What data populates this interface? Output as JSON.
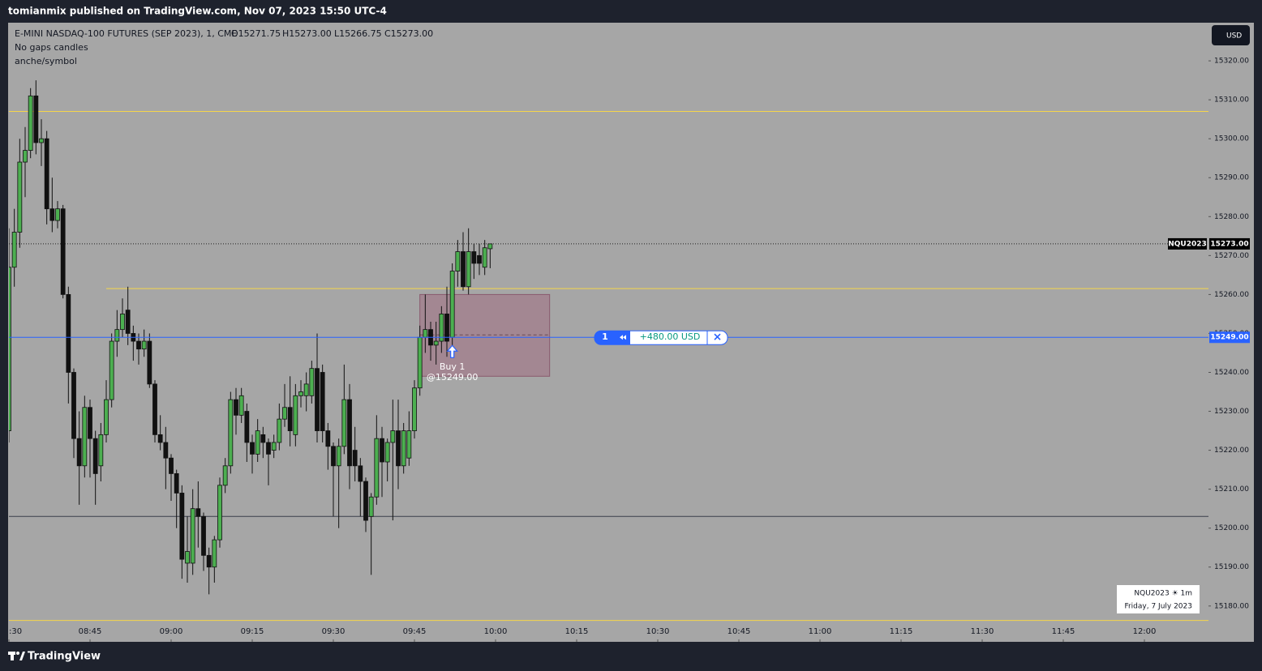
{
  "header": {
    "published": "tomianmix published on TradingView.com, Nov 07, 2023 15:50 UTC-4"
  },
  "legend": {
    "symbol": "E-MINI NASDAQ-100 FUTURES (SEP 2023), 1, CME",
    "open": "O15271.75",
    "high": "H15273.00",
    "low": "L15266.75",
    "close": "C15273.00",
    "indicator1": "No gaps candles",
    "indicator2": "anche/symbol"
  },
  "currency_button": "USD",
  "chart_data": {
    "type": "candlestick",
    "grid": false,
    "background": "#a6a6a6",
    "up_color": "#4caf50",
    "down_color": "#111111",
    "x": [
      510,
      511,
      512,
      513,
      514,
      515,
      516,
      517,
      518,
      519,
      520,
      521,
      522,
      523,
      524,
      525,
      526,
      527,
      528,
      529,
      530,
      531,
      532,
      533,
      534,
      535,
      536,
      537,
      538,
      539,
      540,
      541,
      542,
      543,
      544,
      545,
      546,
      547,
      548,
      549,
      550,
      551,
      552,
      553,
      554,
      555,
      556,
      557,
      558,
      559,
      560,
      561,
      562,
      563,
      564,
      565,
      566,
      567,
      568,
      569,
      570,
      571,
      572,
      573,
      574,
      575,
      576,
      577,
      578,
      579,
      580,
      581,
      582,
      583,
      584,
      585,
      586,
      587,
      588,
      589,
      590,
      591,
      592,
      593,
      594,
      595,
      596,
      597,
      598,
      599
    ],
    "open": [
      15225,
      15267,
      15276,
      15294,
      15297,
      15311,
      15299,
      15300,
      15282,
      15279,
      15282,
      15260,
      15240,
      15223,
      15216,
      15231,
      15223,
      15216,
      15224,
      15233,
      15248,
      15251,
      15256,
      15250,
      15248,
      15246,
      15248,
      15237,
      15224,
      15222,
      15218,
      15214,
      15209,
      15191,
      15191,
      15205,
      15203,
      15193,
      15190,
      15197,
      15211,
      15216,
      15233,
      15229,
      15230,
      15222,
      15219,
      15224,
      15222,
      15220,
      15222,
      15228,
      15231,
      15224,
      15234,
      15234,
      15234,
      15241,
      15240,
      15225,
      15221,
      15216,
      15221,
      15233,
      15220,
      15216,
      15212,
      15203,
      15208,
      15223,
      15217,
      15222,
      15225,
      15216,
      15218,
      15225,
      15236,
      15249,
      15251,
      15247,
      15248,
      15255,
      15249,
      15266,
      15271,
      15262,
      15271,
      15270,
      15267,
      15271.75
    ],
    "high": [
      15277,
      15282,
      15300,
      15303,
      15313,
      15315,
      15305,
      15302,
      15290,
      15284,
      15283,
      15262,
      15241,
      15230,
      15234,
      15233,
      15225,
      15227,
      15238,
      15250,
      15256,
      15259,
      15262,
      15252,
      15250,
      15251,
      15250,
      15238,
      15229,
      15226,
      15219,
      15215,
      15211,
      15203,
      15210,
      15212,
      15204,
      15195,
      15198,
      15213,
      15218,
      15235,
      15236,
      15236,
      15232,
      15224,
      15228,
      15226,
      15223,
      15224,
      15232,
      15237,
      15239,
      15237,
      15238,
      15240,
      15243,
      15250,
      15242,
      15227,
      15222,
      15223,
      15242,
      15237,
      15226,
      15218,
      15213,
      15209,
      15229,
      15226,
      15223,
      15233,
      15233,
      15227,
      15230,
      15238,
      15252,
      15260,
      15253,
      15253,
      15257,
      15262,
      15268,
      15274,
      15276,
      15277,
      15273,
      15273,
      15274,
      15273
    ],
    "low": [
      15222,
      15262,
      15272,
      15285,
      15295,
      15296,
      15293,
      15278,
      15276,
      15277,
      15259,
      15232,
      15218,
      15206,
      15213,
      15213,
      15206,
      15212,
      15222,
      15231,
      15244,
      15249,
      15247,
      15243,
      15242,
      15244,
      15236,
      15222,
      15220,
      15210,
      15207,
      15200,
      15187,
      15186,
      15188,
      15195,
      15189,
      15183,
      15186,
      15195,
      15209,
      15214,
      15224,
      15227,
      15217,
      15214,
      15217,
      15218,
      15211,
      15218,
      15220,
      15226,
      15221,
      15221,
      15231,
      15230,
      15232,
      15222,
      15222,
      15215,
      15203,
      15200,
      15219,
      15210,
      15212,
      15203,
      15199,
      15188,
      15206,
      15208,
      15212,
      15202,
      15210,
      15214,
      15216,
      15223,
      15234,
      15245,
      15243,
      15242,
      15245,
      15244,
      15246,
      15262,
      15261,
      15260,
      15264,
      15265,
      15265,
      15266.75
    ],
    "close": [
      15267,
      15276,
      15294,
      15297,
      15311,
      15299,
      15300,
      15282,
      15279,
      15282,
      15260,
      15240,
      15223,
      15216,
      15231,
      15223,
      15214,
      15224,
      15233,
      15248,
      15251,
      15255,
      15250,
      15248,
      15246,
      15248,
      15237,
      15224,
      15222,
      15218,
      15214,
      15209,
      15192,
      15194,
      15205,
      15203,
      15193,
      15190,
      15197,
      15211,
      15216,
      15233,
      15229,
      15234,
      15222,
      15219,
      15225,
      15222,
      15219,
      15222,
      15228,
      15231,
      15225,
      15234,
      15235,
      15237,
      15241,
      15225,
      15225,
      15221,
      15216,
      15221,
      15233,
      15216,
      15216,
      15212,
      15202,
      15208,
      15223,
      15217,
      15222,
      15225,
      15216,
      15225,
      15225,
      15236,
      15249,
      15251,
      15247,
      15248,
      15255,
      15248,
      15266,
      15271,
      15262,
      15271,
      15268,
      15268,
      15272,
      15273
    ],
    "xlim": [
      510,
      731.85
    ],
    "xticks": [
      {
        "value": 510,
        "label": ":30"
      },
      {
        "value": 525,
        "label": "08:45"
      },
      {
        "value": 540,
        "label": "09:00"
      },
      {
        "value": 555,
        "label": "09:15"
      },
      {
        "value": 570,
        "label": "09:30"
      },
      {
        "value": 585,
        "label": "09:45"
      },
      {
        "value": 600,
        "label": "10:00"
      },
      {
        "value": 615,
        "label": "10:15"
      },
      {
        "value": 630,
        "label": "10:30"
      },
      {
        "value": 645,
        "label": "10:45"
      },
      {
        "value": 660,
        "label": "11:00"
      },
      {
        "value": 675,
        "label": "11:15"
      },
      {
        "value": 690,
        "label": "11:30"
      },
      {
        "value": 705,
        "label": "11:45"
      },
      {
        "value": 720,
        "label": "12:00"
      }
    ],
    "ylim": [
      15170.8,
      15329.8
    ],
    "yticks": [
      {
        "value": 15180,
        "label": "15180.00"
      },
      {
        "value": 15190,
        "label": "15190.00"
      },
      {
        "value": 15200,
        "label": "15200.00"
      },
      {
        "value": 15210,
        "label": "15210.00"
      },
      {
        "value": 15220,
        "label": "15220.00"
      },
      {
        "value": 15230,
        "label": "15230.00"
      },
      {
        "value": 15240,
        "label": "15240.00"
      },
      {
        "value": 15250,
        "label": "15250.00"
      },
      {
        "value": 15260,
        "label": "15260.00"
      },
      {
        "value": 15270,
        "label": "15270.00"
      },
      {
        "value": 15280,
        "label": "15280.00"
      },
      {
        "value": 15290,
        "label": "15290.00"
      },
      {
        "value": 15300,
        "label": "15300.00"
      },
      {
        "value": 15310,
        "label": "15310.00"
      },
      {
        "value": 15320,
        "label": "15320.00"
      }
    ],
    "hlines": [
      {
        "value": 15307,
        "color": "#f5d54a",
        "x_start": 510
      },
      {
        "value": 15261.5,
        "color": "#f5d54a",
        "x_start": 528
      },
      {
        "value": 15203,
        "color": "#3a3f4a",
        "x_start": 510
      },
      {
        "value": 15176.3,
        "color": "#f5d54a",
        "x_start": 510
      }
    ],
    "last_price": {
      "value": 15273,
      "label": "15273.00",
      "symbol": "NQU2023"
    },
    "position": {
      "entry": {
        "value": 15249,
        "label": "15249.00"
      },
      "top": 15260,
      "bottom": 15239,
      "x_start": 586,
      "x_end": 610,
      "quantity": "1",
      "pnl": "+480.00 USD"
    },
    "buy": {
      "x": 592,
      "label": "Buy 1",
      "price_label": "@15249.00"
    }
  },
  "info_box": {
    "line1": "NQU2023 ☀ 1m",
    "line2": "Friday, 7 July 2023"
  },
  "footer": {
    "brand": "TradingView"
  }
}
